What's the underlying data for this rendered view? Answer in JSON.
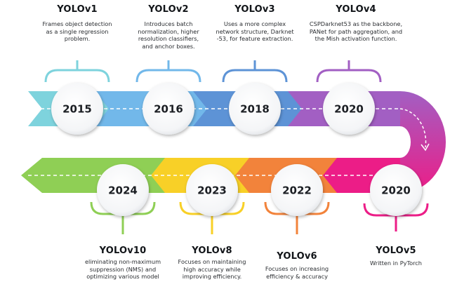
{
  "milestones": [
    {
      "year": "2015",
      "version": "YOLOv1",
      "color": "#7ed3dd",
      "description": [
        "Frames object detection",
        "as a single regression",
        "problem."
      ]
    },
    {
      "year": "2016",
      "version": "YOLOv2",
      "color": "#72b8ea",
      "description": [
        "Introduces batch",
        "normalization, higher",
        "resolution classifiers,",
        "and anchor boxes."
      ]
    },
    {
      "year": "2018",
      "version": "YOLOv3",
      "color": "#5d93d6",
      "description": [
        "Uses a more complex",
        "network structure, Darknet",
        "-53, for feature extraction."
      ]
    },
    {
      "year": "2020",
      "version": "YOLOv4",
      "color": "#a25fc3",
      "description": [
        "CSPDarknet53 as the backbone,",
        "PANet for path aggregation, and",
        "the Mish activation function."
      ]
    },
    {
      "year": "2020",
      "version": "YOLOv5",
      "color": "#ec1d87",
      "description": [
        "Written in PyTorch"
      ]
    },
    {
      "year": "2022",
      "version": "YOLOv6",
      "color": "#f2833b",
      "description": [
        "Focuses on increasing",
        "efficiency & accuracy"
      ]
    },
    {
      "year": "2023",
      "version": "YOLOv8",
      "color": "#f8d027",
      "description": [
        "Focuses on maintaining",
        "high accuracy while",
        "improving efficiency."
      ]
    },
    {
      "year": "2024",
      "version": "YOLOv10",
      "color": "#8fcf55",
      "description": [
        "eliminating non-maximum",
        "suppression (NMS) and",
        "optimizing various model"
      ]
    }
  ]
}
